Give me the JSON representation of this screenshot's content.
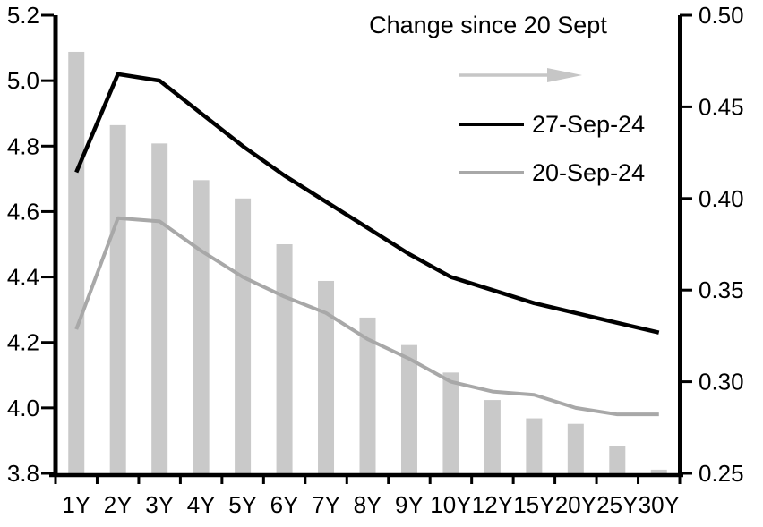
{
  "chart_data": {
    "type": "combo",
    "categories": [
      "1Y",
      "2Y",
      "3Y",
      "4Y",
      "5Y",
      "6Y",
      "7Y",
      "8Y",
      "9Y",
      "10Y",
      "12Y",
      "15Y",
      "20Y",
      "25Y",
      "30Y"
    ],
    "series": [
      {
        "name": "Change since 20 Sept",
        "type": "bar",
        "axis": "right",
        "color": "#c9c9c9",
        "values": [
          0.48,
          0.44,
          0.43,
          0.41,
          0.4,
          0.375,
          0.355,
          0.335,
          0.32,
          0.305,
          0.29,
          0.28,
          0.277,
          0.265,
          0.252
        ]
      },
      {
        "name": "27-Sep-24",
        "type": "line",
        "axis": "left",
        "color": "#000000",
        "values": [
          4.72,
          5.02,
          5.0,
          4.9,
          4.8,
          4.71,
          4.63,
          4.55,
          4.47,
          4.4,
          4.36,
          4.32,
          4.29,
          4.26,
          4.23
        ]
      },
      {
        "name": "20-Sep-24",
        "type": "line",
        "axis": "left",
        "color": "#a8a8a8",
        "values": [
          4.24,
          4.58,
          4.57,
          4.48,
          4.4,
          4.34,
          4.29,
          4.21,
          4.15,
          4.08,
          4.05,
          4.04,
          4.0,
          3.98,
          3.98
        ]
      }
    ],
    "left_axis": {
      "min": 3.8,
      "max": 5.2,
      "step": 0.2,
      "tick_labels": [
        "5.2",
        "5.0",
        "4.8",
        "4.6",
        "4.4",
        "4.2",
        "4.0",
        "3.8"
      ]
    },
    "right_axis": {
      "min": 0.25,
      "max": 0.5,
      "step": 0.05,
      "tick_labels": [
        "0.50",
        "0.45",
        "0.40",
        "0.35",
        "0.30",
        "0.25"
      ]
    },
    "grid": false,
    "legend_position": "top-right"
  },
  "legend": {
    "title": "Change since 20 Sept",
    "arrow_icon": "right-arrow",
    "arrow_color": "#c6c6c6",
    "items": [
      {
        "label": "27-Sep-24",
        "color": "#000000"
      },
      {
        "label": "20-Sep-24",
        "color": "#a8a8a8"
      }
    ]
  },
  "colors": {
    "axis": "#000000",
    "background": "#ffffff",
    "bar": "#c9c9c9"
  }
}
